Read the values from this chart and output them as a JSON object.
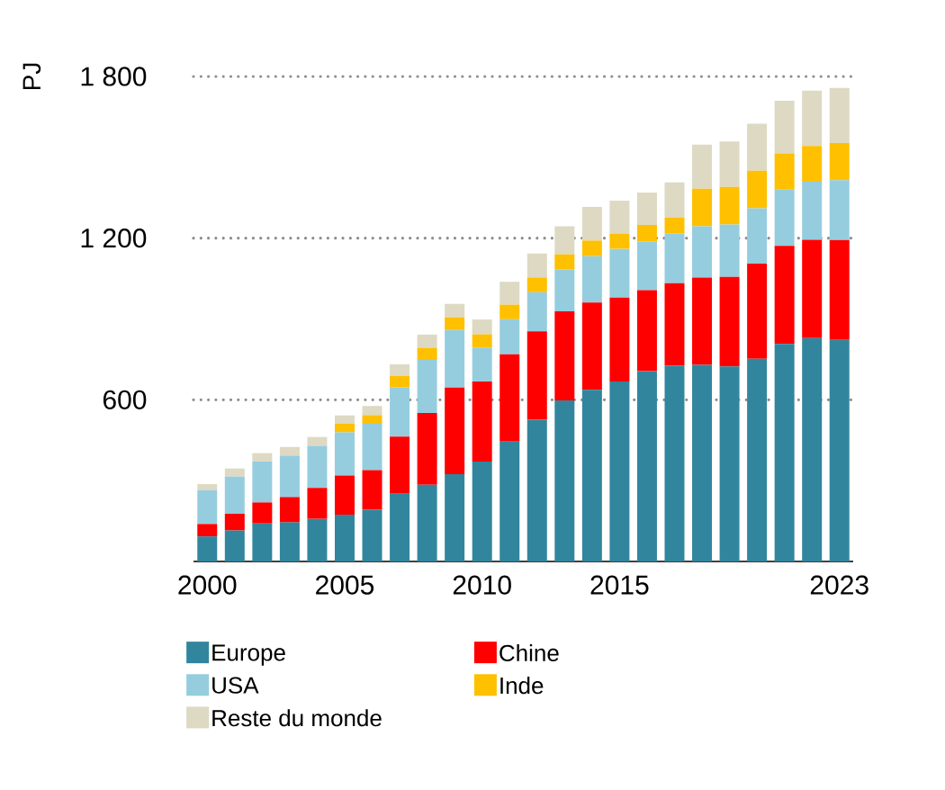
{
  "chart_data": {
    "type": "bar",
    "stacked": true,
    "ylabel": "PJ",
    "categories": [
      "2000",
      null,
      null,
      null,
      null,
      "2005",
      null,
      null,
      null,
      null,
      "2010",
      null,
      null,
      null,
      null,
      "2015",
      null,
      null,
      null,
      null,
      null,
      null,
      null,
      "2023"
    ],
    "series": [
      {
        "name": "Europe",
        "color": "#31869e",
        "values": [
          93,
          115,
          141,
          145,
          158,
          174,
          192,
          251,
          285,
          324,
          371,
          445,
          526,
          598,
          637,
          668,
          706,
          726,
          730,
          724,
          752,
          807,
          829,
          822
        ]
      },
      {
        "name": "Chine",
        "color": "#ff0000",
        "values": [
          46,
          62,
          78,
          94,
          115,
          145,
          147,
          212,
          266,
          321,
          297,
          324,
          328,
          330,
          324,
          311,
          301,
          307,
          324,
          332,
          353,
          364,
          365,
          371
        ]
      },
      {
        "name": "USA",
        "color": "#95cddf",
        "values": [
          126,
          138,
          152,
          153,
          156,
          160,
          172,
          183,
          197,
          214,
          125,
          130,
          145,
          155,
          172,
          181,
          180,
          184,
          190,
          195,
          206,
          209,
          215,
          222
        ]
      },
      {
        "name": "Inde",
        "color": "#ffc000",
        "values": [
          0,
          0,
          0,
          0,
          0,
          33,
          32,
          43,
          45,
          47,
          50,
          54,
          55,
          57,
          58,
          57,
          62,
          60,
          139,
          139,
          139,
          134,
          133,
          138
        ]
      },
      {
        "name": "Reste du monde",
        "color": "#ddd9c3",
        "values": [
          22,
          30,
          31,
          33,
          33,
          30,
          34,
          43,
          49,
          50,
          55,
          85,
          89,
          104,
          125,
          122,
          120,
          130,
          164,
          169,
          175,
          196,
          205,
          204
        ]
      }
    ],
    "ylim": [
      0,
      1800
    ],
    "yticks": [
      {
        "value": 600,
        "label": "600"
      },
      {
        "value": 1200,
        "label": "1 200"
      },
      {
        "value": 1800,
        "label": "1 800"
      }
    ],
    "grid": "y",
    "legend": "bottom"
  }
}
